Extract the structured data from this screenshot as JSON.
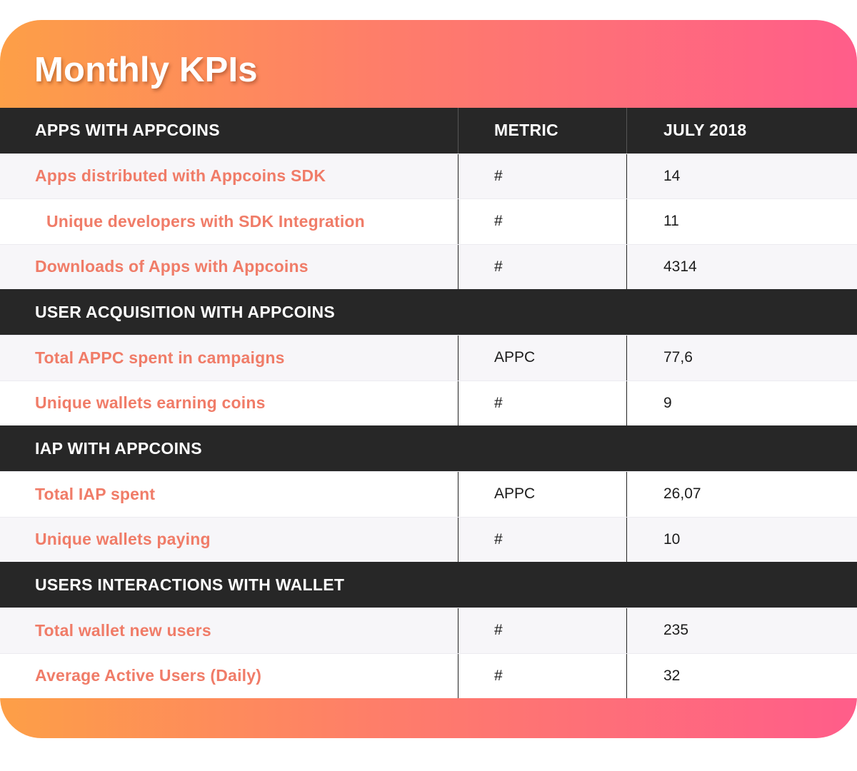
{
  "title": "Monthly KPIs",
  "columns": {
    "name": "APPS WITH APPCOINS",
    "metric": "METRIC",
    "period": "JULY 2018"
  },
  "sections": [
    {
      "heading": "APPS WITH APPCOINS",
      "rows": [
        {
          "label": "Apps distributed with Appcoins SDK",
          "metric": "#",
          "value": "14"
        },
        {
          "label": "Unique developers with SDK Integration",
          "metric": "#",
          "value": "11"
        },
        {
          "label": "Downloads of Apps with Appcoins",
          "metric": "#",
          "value": "4314"
        }
      ]
    },
    {
      "heading": "USER ACQUISITION WITH APPCOINS",
      "rows": [
        {
          "label": "Total APPC spent in campaigns",
          "metric": "APPC",
          "value": "77,6"
        },
        {
          "label": "Unique wallets earning coins",
          "metric": "#",
          "value": "9"
        }
      ]
    },
    {
      "heading": "IAP WITH APPCOINS",
      "rows": [
        {
          "label": "Total IAP spent",
          "metric": "APPC",
          "value": "26,07"
        },
        {
          "label": "Unique wallets paying",
          "metric": "#",
          "value": "10"
        }
      ]
    },
    {
      "heading": "USERS INTERACTIONS WITH WALLET",
      "rows": [
        {
          "label": "Total wallet new users",
          "metric": "#",
          "value": "235"
        },
        {
          "label": "Average Active Users (Daily)",
          "metric": "#",
          "value": "32"
        }
      ]
    }
  ],
  "colors": {
    "gradient_start": "#fd9f47",
    "gradient_end": "#ff5d8a",
    "header_bg": "#272727",
    "label_color": "#f07c68"
  }
}
